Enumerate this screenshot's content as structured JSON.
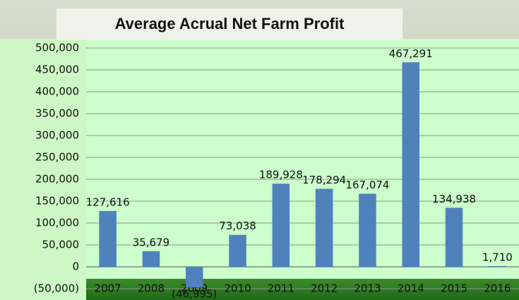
{
  "chart_data": {
    "type": "bar",
    "title": "Average Acrual Net Farm Profit",
    "categories": [
      "2007",
      "2008",
      "2009",
      "2010",
      "2011",
      "2012",
      "2013",
      "2014",
      "2015",
      "2016"
    ],
    "values": [
      127616,
      35679,
      -46995,
      73038,
      189928,
      178294,
      167074,
      467291,
      134938,
      1710
    ],
    "value_labels": [
      "127,616",
      "35,679",
      "(46,995)",
      "73,038",
      "189,928",
      "178,294",
      "167,074",
      "467,291",
      "134,938",
      "1,710"
    ],
    "color": "#4f81bd",
    "ylim": [
      -50000,
      500000
    ],
    "yticks": [
      {
        "value": -50000,
        "label": "(50,000)"
      },
      0,
      {
        "value": 50000,
        "label": "50,000"
      },
      {
        "value": 100000,
        "label": "100,000"
      },
      {
        "value": 150000,
        "label": "150,000"
      },
      {
        "value": 200000,
        "label": "200,000"
      },
      {
        "value": 250000,
        "label": "250,000"
      },
      {
        "value": 300000,
        "label": "300,000"
      },
      {
        "value": 350000,
        "label": "350,000"
      },
      {
        "value": 400000,
        "label": "400,000"
      },
      {
        "value": 450000,
        "label": "450,000"
      },
      {
        "value": 500000,
        "label": "500,000"
      }
    ],
    "grid": true
  }
}
